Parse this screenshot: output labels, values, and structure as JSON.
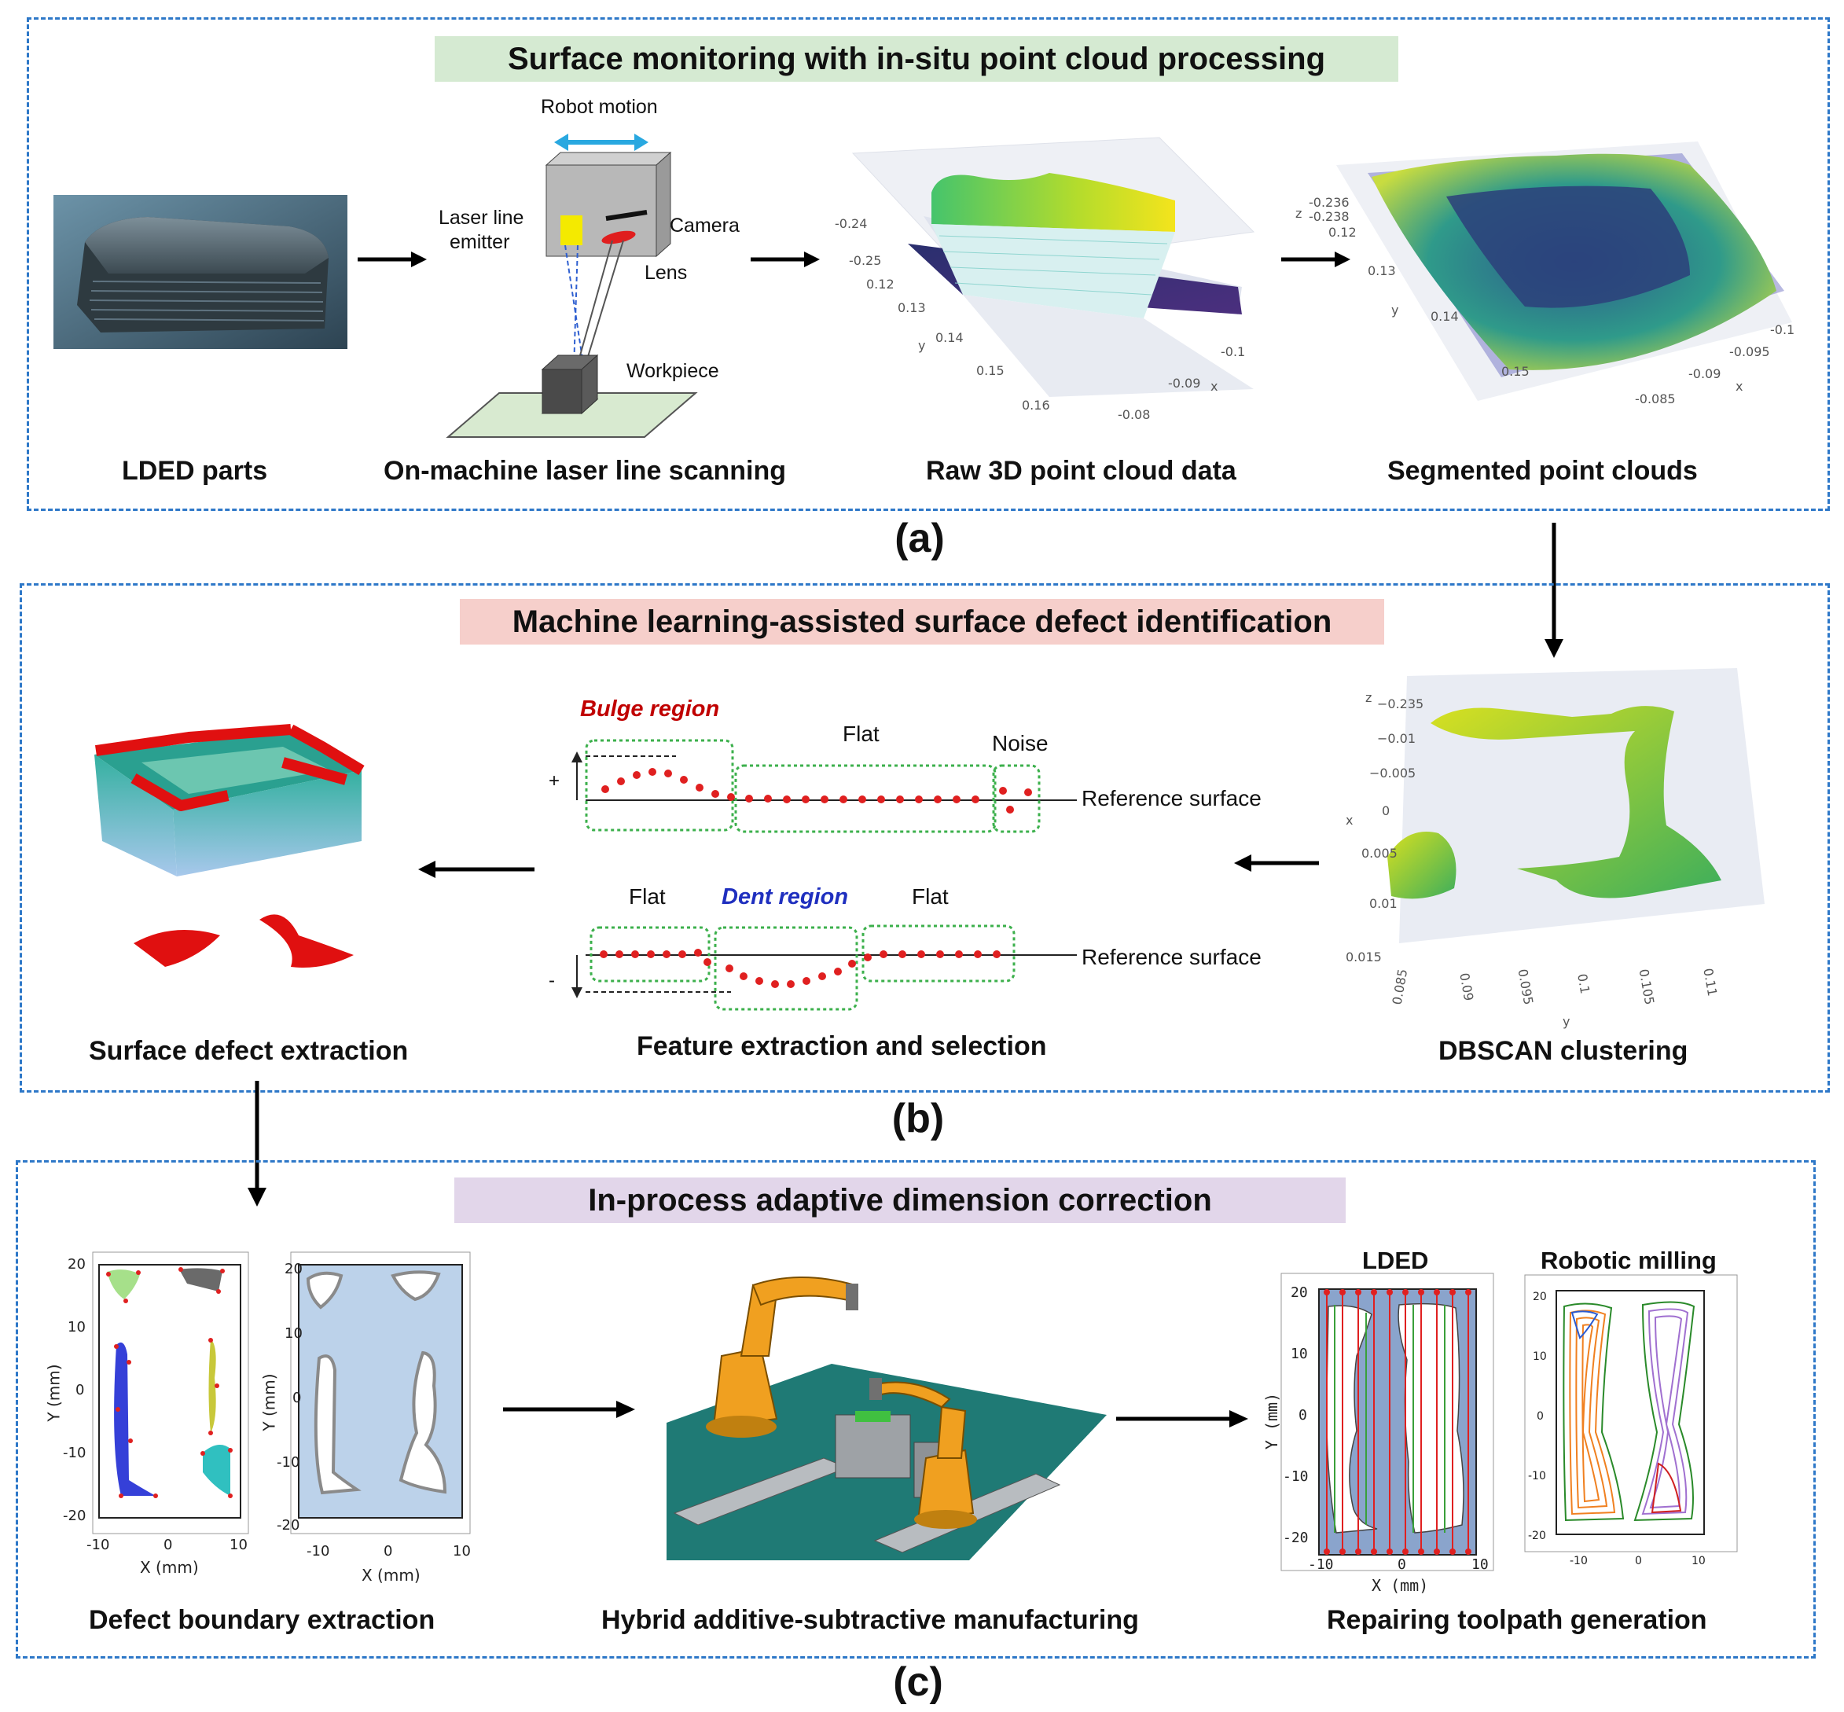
{
  "panel_a": {
    "title": "Surface monitoring with in-situ point cloud processing",
    "label": "(a)",
    "captions": [
      "LDED parts",
      "On-machine laser line scanning",
      "Raw 3D point cloud data",
      "Segmented point clouds"
    ],
    "scanner": {
      "robot_motion": "Robot motion",
      "emitter_line1": "Laser line",
      "emitter_line2": "emitter",
      "camera": "Camera",
      "lens": "Lens",
      "workpiece": "Workpiece"
    },
    "raw_ticks": {
      "z1": "-0.24",
      "z2": "-0.25",
      "y1": "0.12",
      "y2": "0.13",
      "y3": "0.14",
      "y4": "0.15",
      "y5": "0.16",
      "y": "y",
      "x1": "-0.1",
      "x2": "-0.09",
      "x3": "-0.08",
      "x": "x"
    },
    "seg_ticks": {
      "z": "z",
      "z1": "-0.236",
      "z2": "-0.238",
      "y1": "0.12",
      "y2": "0.13",
      "y3": "0.14",
      "y4": "0.15",
      "y": "y",
      "x1": "-0.1",
      "x2": "-0.095",
      "x3": "-0.09",
      "x4": "-0.085",
      "x": "x"
    }
  },
  "panel_b": {
    "title": "Machine learning-assisted surface defect identification",
    "label": "(b)",
    "captions": [
      "Surface defect extraction",
      "Feature extraction and selection",
      "DBSCAN clustering"
    ],
    "feature": {
      "bulge": "Bulge region",
      "flat": "Flat",
      "noise": "Noise",
      "reference": "Reference surface",
      "dent": "Dent region",
      "plus": "+",
      "minus": "-"
    },
    "dbscan_ticks": {
      "z": "z",
      "zt": [
        "−0.235",
        "−0.01",
        "−0.005",
        "0",
        "0.005",
        "0.01",
        "0.015"
      ],
      "x": "x",
      "yt": [
        "0.085",
        "0.09",
        "0.095",
        "0.1",
        "0.105",
        "0.11"
      ],
      "y": "y"
    }
  },
  "panel_c": {
    "title": "In-process adaptive dimension correction",
    "label": "(c)",
    "captions": [
      "Defect boundary extraction",
      "Hybrid additive-subtractive manufacturing",
      "Repairing toolpath generation"
    ],
    "plot_axes": {
      "xlabel": "X (mm)",
      "ylabel": "Y (mm)",
      "yticks": [
        "20",
        "10",
        "0",
        "-10",
        "-20"
      ],
      "xticks": [
        "-10",
        "0",
        "10"
      ]
    },
    "lded_label": "LDED",
    "milling_label": "Robotic milling"
  },
  "colors": {
    "panel_border": "#2e78c8",
    "banner_a": "#d5ead2",
    "banner_b": "#f6cfcb",
    "banner_c": "#e2d6ea",
    "bulge": "#c00000",
    "dent": "#1f2fbf",
    "points": "#e02020",
    "robot": "#f0a020",
    "floor": "#1f7a75"
  }
}
